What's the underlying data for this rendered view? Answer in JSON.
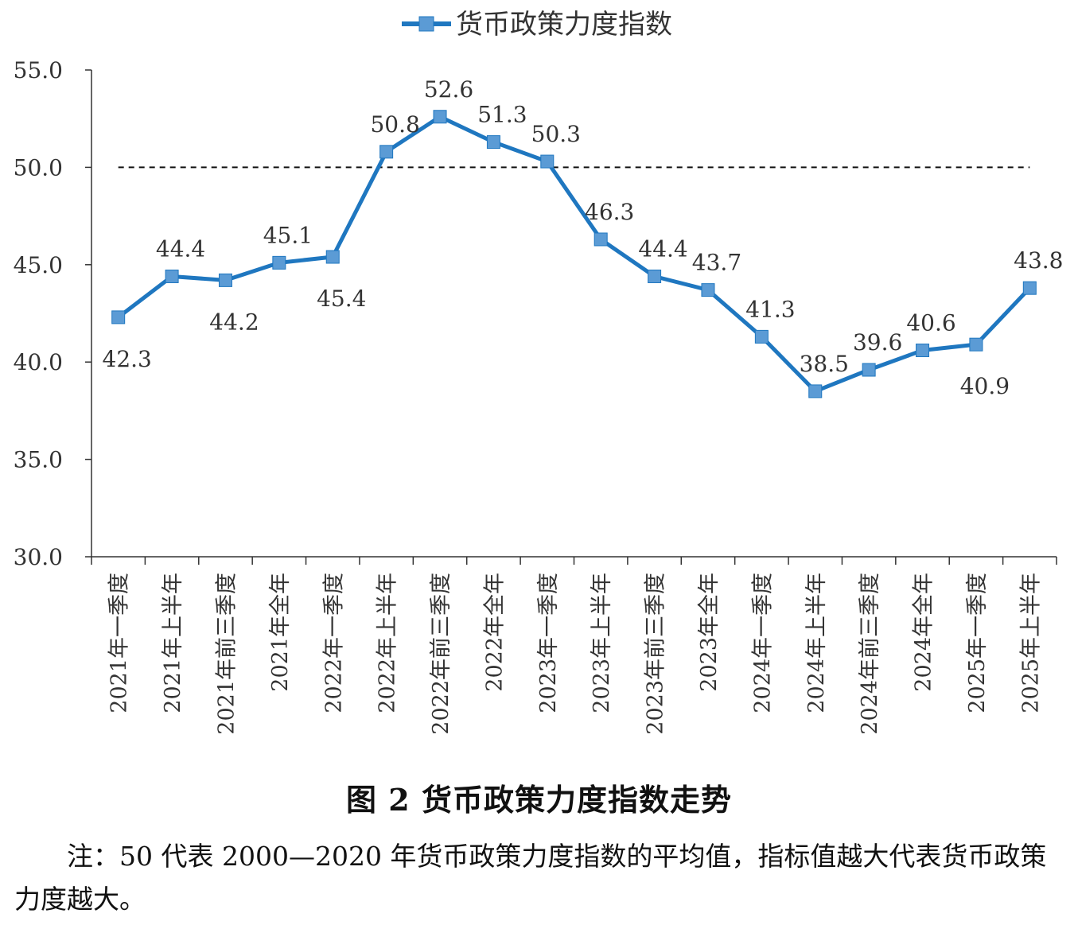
{
  "chart_data": {
    "type": "line",
    "categories": [
      "2021年一季度",
      "2021年上半年",
      "2021年前三季度",
      "2021年全年",
      "2022年一季度",
      "2022年上半年",
      "2022年前三季度",
      "2022年全年",
      "2023年一季度",
      "2023年上半年",
      "2023年前三季度",
      "2023年全年",
      "2024年一季度",
      "2024年上半年",
      "2024年前三季度",
      "2024年全年",
      "2025年一季度",
      "2025年上半年"
    ],
    "series": [
      {
        "name": "货币政策力度指数",
        "color": "#1f77c0",
        "marker_color": "#5b9bd5",
        "values": [
          42.3,
          44.4,
          44.2,
          45.1,
          45.4,
          50.8,
          52.6,
          51.3,
          50.3,
          46.3,
          44.4,
          43.7,
          41.3,
          38.5,
          39.6,
          40.6,
          40.9,
          43.8
        ],
        "data_labels": [
          "42.3",
          "44.4",
          "44.2",
          "45.1",
          "45.4",
          "50.8",
          "52.6",
          "51.3",
          "50.3",
          "46.3",
          "44.4",
          "43.7",
          "41.3",
          "38.5",
          "39.6",
          "40.6",
          "40.9",
          "43.8"
        ],
        "label_position": [
          "below",
          "above",
          "below",
          "above",
          "below",
          "above",
          "above",
          "above",
          "above",
          "above",
          "above",
          "above",
          "above",
          "above",
          "above",
          "above",
          "below",
          "above"
        ]
      }
    ],
    "reference_line": {
      "value": 50.0,
      "style": "dashed"
    },
    "ylim": [
      30.0,
      55.0
    ],
    "yticks": [
      "30.0",
      "35.0",
      "40.0",
      "45.0",
      "50.0",
      "55.0"
    ],
    "ytick_values": [
      30,
      35,
      40,
      45,
      50,
      55
    ],
    "legend_position": "top-center",
    "grid": false,
    "xlabel": "",
    "ylabel": ""
  },
  "figure": {
    "title": "图 2  货币政策力度指数走势",
    "note": "注：50 代表 2000—2020 年货币政策力度指数的平均值，指标值越大代表货币政策力度越大。"
  }
}
